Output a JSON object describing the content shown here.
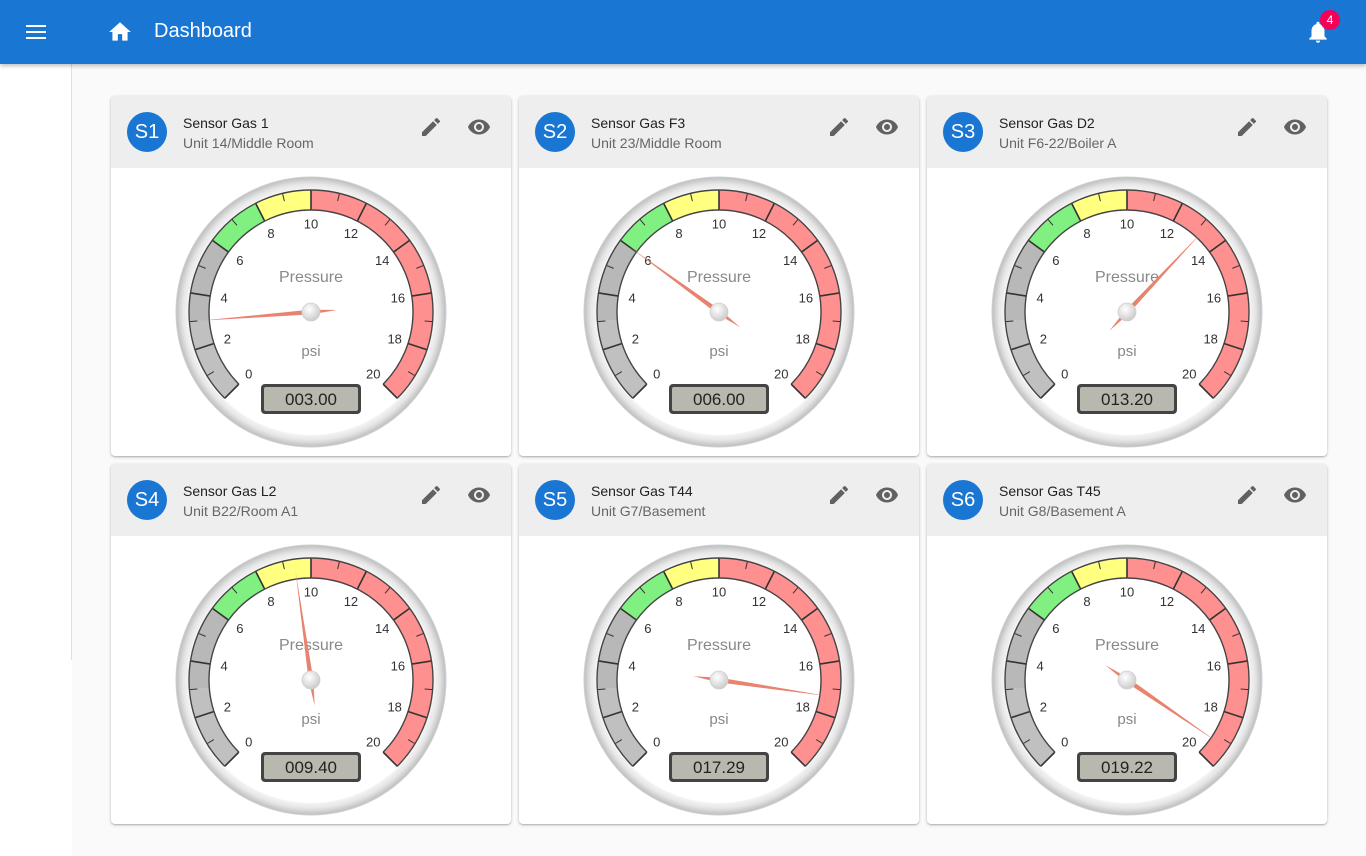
{
  "app": {
    "title": "Dashboard",
    "notifications": "4"
  },
  "gauge_common": {
    "label": "Pressure",
    "unit": "psi",
    "min": 0,
    "max": 20,
    "tick_labels": [
      "0",
      "2",
      "4",
      "6",
      "8",
      "10",
      "12",
      "14",
      "16",
      "18",
      "20"
    ],
    "zones": [
      {
        "from": 0,
        "to": 3,
        "color": "#c0c0c0"
      },
      {
        "from": 3,
        "to": 6,
        "color": "#b8b8b8"
      },
      {
        "from": 6,
        "to": 8,
        "color": "#80f080"
      },
      {
        "from": 8,
        "to": 10,
        "color": "#ffff80"
      },
      {
        "from": 10,
        "to": 20,
        "color": "#ff9090"
      }
    ],
    "needle_color": "#e8836f"
  },
  "sensors": [
    {
      "avatar": "S1",
      "name": "Sensor Gas 1",
      "location": "Unit 14/Middle Room",
      "value": 3.0,
      "display": "003.00"
    },
    {
      "avatar": "S2",
      "name": "Sensor Gas F3",
      "location": "Unit 23/Middle Room",
      "value": 6.0,
      "display": "006.00"
    },
    {
      "avatar": "S3",
      "name": "Sensor Gas D2",
      "location": "Unit F6-22/Boiler A",
      "value": 13.2,
      "display": "013.20"
    },
    {
      "avatar": "S4",
      "name": "Sensor Gas L2",
      "location": "Unit B22/Room A1",
      "value": 9.4,
      "display": "009.40"
    },
    {
      "avatar": "S5",
      "name": "Sensor Gas T44",
      "location": "Unit G7/Basement",
      "value": 17.29,
      "display": "017.29"
    },
    {
      "avatar": "S6",
      "name": "Sensor Gas T45",
      "location": "Unit G8/Basement A",
      "value": 19.22,
      "display": "019.22"
    }
  ]
}
